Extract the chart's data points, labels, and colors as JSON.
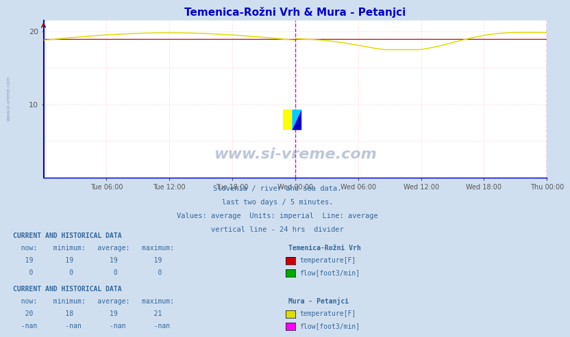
{
  "title": "Temenica-Rožni Vrh & Mura - Petanjci",
  "title_color": "#0000cc",
  "bg_color": "#d0dff0",
  "plot_bg_color": "#ffffff",
  "ylim": [
    0,
    21.5
  ],
  "yticks": [
    10,
    20
  ],
  "x_tick_hours": [
    6,
    12,
    18,
    24,
    30,
    36,
    42,
    48
  ],
  "x_labels": [
    "Tue 06:00",
    "Tue 12:00",
    "Tue 18:00",
    "Wed 00:00",
    "Wed 06:00",
    "Wed 12:00",
    "Wed 18:00",
    "Thu 00:00"
  ],
  "n_points": 576,
  "grid_color_h": "#ffcccc",
  "grid_color_v": "#ffcccc",
  "line_color_trv_temp": "#cc0000",
  "line_color_trv_flow": "#00aa00",
  "line_color_mura_temp": "#dddd00",
  "line_color_mura_flow": "#ff00ff",
  "divider_color": "#dd00dd",
  "axis_color": "#0000cc",
  "watermark_color": "#8899bb",
  "info_color": "#336699",
  "logo_yellow": "#ffff00",
  "logo_cyan": "#00ccff",
  "logo_blue": "#0000cc"
}
